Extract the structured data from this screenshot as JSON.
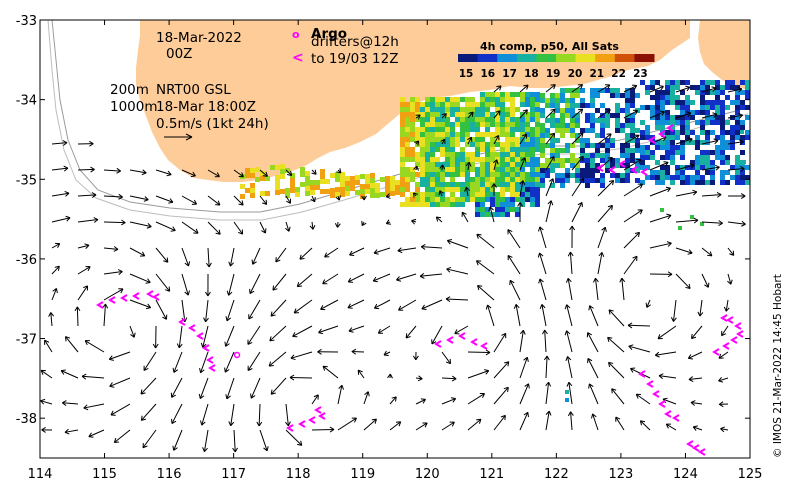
{
  "map": {
    "lon_range": [
      114,
      125
    ],
    "lat_range": [
      -38.5,
      -33
    ],
    "x_ticks": [
      "114",
      "115",
      "116",
      "117",
      "118",
      "119",
      "120",
      "121",
      "122",
      "123",
      "124",
      "125"
    ],
    "y_ticks": [
      "-33",
      "-34",
      "-35",
      "-36",
      "-37",
      "-38"
    ]
  },
  "annotations": {
    "date": "18-Mar-2022",
    "time": "00Z",
    "depth_200": "200m",
    "product": "NRT00 GSL",
    "depth_1000": "1000m",
    "valid": "18-Mar 18:00Z",
    "scale_label": "0.5m/s (1kt 24h)",
    "argo": "Argo",
    "drifters": "drifters@12h",
    "drifters_to": "to 19/03 12Z",
    "argo_symbol": "o",
    "drifter_symbol": "<"
  },
  "colorbar": {
    "title": "4h comp, p50, All Sats",
    "labels": [
      "15",
      "16",
      "17",
      "18",
      "19",
      "20",
      "21",
      "22",
      "23"
    ],
    "colors": [
      "#0a1a7a",
      "#1030c8",
      "#0f8fd8",
      "#18b0a0",
      "#34c040",
      "#98d820",
      "#e8e020",
      "#f0a010",
      "#d05008",
      "#8a1004"
    ]
  },
  "credit": "© IMOS 21-Mar-2022 14:45 Hobart",
  "colors": {
    "land": "#fdcc99",
    "drifter": "#ff00ff",
    "arrow": "#000000"
  }
}
